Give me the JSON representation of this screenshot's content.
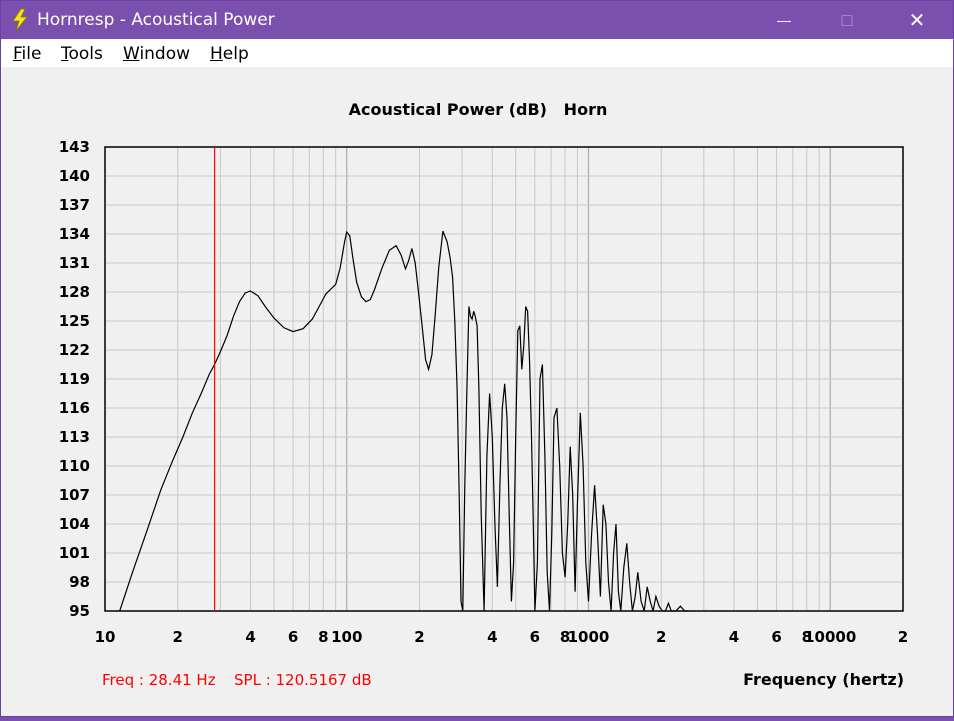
{
  "window": {
    "title": "Hornresp - Acoustical Power",
    "controls": {
      "minimize": "—",
      "maximize": "□",
      "close": "✕"
    }
  },
  "menu": [
    {
      "label": "File",
      "mnemonic": "F",
      "rest": "ile"
    },
    {
      "label": "Tools",
      "mnemonic": "T",
      "rest": "ools"
    },
    {
      "label": "Window",
      "mnemonic": "W",
      "rest": "indow"
    },
    {
      "label": "Help",
      "mnemonic": "H",
      "rest": "elp"
    }
  ],
  "status": {
    "freq": "Freq : 28.41 Hz",
    "spl": "SPL : 120.5167 dB"
  },
  "colors": {
    "titlebar": "#7a4fae",
    "cursor": "#ff0000",
    "status_text": "#ff0000",
    "curve": "#000000",
    "grid": "#c8c8c8"
  },
  "chart_data": {
    "type": "line",
    "title": "Acoustical Power (dB)   Horn",
    "xlabel": "Frequency (hertz)",
    "ylabel": "",
    "x_scale": "log",
    "xlim": [
      10,
      20000
    ],
    "ylim": [
      95,
      143
    ],
    "y_ticks": [
      143,
      140,
      137,
      134,
      131,
      128,
      125,
      122,
      119,
      116,
      113,
      110,
      107,
      104,
      101,
      98,
      95
    ],
    "x_tick_labels": [
      {
        "value": 10,
        "label": "10"
      },
      {
        "value": 20,
        "label": "2"
      },
      {
        "value": 40,
        "label": "4"
      },
      {
        "value": 60,
        "label": "6"
      },
      {
        "value": 80,
        "label": "8"
      },
      {
        "value": 100,
        "label": "100"
      },
      {
        "value": 200,
        "label": "2"
      },
      {
        "value": 400,
        "label": "4"
      },
      {
        "value": 600,
        "label": "6"
      },
      {
        "value": 800,
        "label": "8"
      },
      {
        "value": 1000,
        "label": "1000"
      },
      {
        "value": 2000,
        "label": "2"
      },
      {
        "value": 4000,
        "label": "4"
      },
      {
        "value": 6000,
        "label": "6"
      },
      {
        "value": 8000,
        "label": "8"
      },
      {
        "value": 10000,
        "label": "10000"
      },
      {
        "value": 20000,
        "label": "2"
      }
    ],
    "grid": true,
    "cursor": {
      "x": 28.41,
      "y": 120.5167
    },
    "series": [
      {
        "x": [
          11.5,
          13,
          15,
          17,
          19,
          21,
          23,
          25,
          27,
          28.41,
          30,
          32,
          34,
          36,
          38,
          40,
          43,
          46,
          50,
          55,
          60,
          66,
          72,
          78,
          82,
          86,
          90,
          94,
          98,
          100,
          103,
          106,
          110,
          115,
          120,
          125,
          130,
          140,
          150,
          160,
          168,
          175,
          180,
          186,
          192,
          198,
          205,
          212,
          218,
          225,
          232,
          240,
          250,
          260,
          268,
          274,
          280,
          286,
          292,
          297,
          302,
          308,
          314,
          320,
          325,
          330,
          335,
          340,
          346,
          352,
          360,
          370,
          380,
          390,
          400,
          410,
          420,
          430,
          440,
          450,
          460,
          470,
          480,
          490,
          500,
          510,
          520,
          530,
          540,
          550,
          560,
          570,
          580,
          590,
          600,
          615,
          630,
          645,
          660,
          675,
          690,
          705,
          720,
          740,
          760,
          780,
          800,
          820,
          840,
          860,
          880,
          900,
          925,
          950,
          975,
          1000,
          1030,
          1060,
          1090,
          1120,
          1150,
          1180,
          1210,
          1240,
          1270,
          1300,
          1330,
          1360,
          1400,
          1440,
          1480,
          1520,
          1560,
          1600,
          1650,
          1700,
          1750,
          1800,
          1850,
          1900,
          1960,
          2020,
          2080,
          2140,
          2200,
          2300,
          2400,
          2500,
          2600
        ],
        "values": [
          95,
          99,
          103.5,
          107.5,
          110.5,
          113,
          115.5,
          117.5,
          119.5,
          120.5,
          121.8,
          123.5,
          125.5,
          127,
          127.9,
          128.1,
          127.6,
          126.5,
          125.3,
          124.3,
          123.9,
          124.2,
          125.2,
          126.8,
          127.8,
          128.3,
          128.8,
          130.5,
          133.2,
          134.2,
          133.8,
          131.5,
          129,
          127.5,
          127,
          127.2,
          128.2,
          130.5,
          132.3,
          132.8,
          131.8,
          130.4,
          131.2,
          132.5,
          131,
          128,
          124.5,
          121,
          120,
          121.5,
          125.5,
          130.5,
          134.3,
          133.2,
          131.5,
          129.5,
          125,
          118,
          107,
          96,
          95,
          108,
          118,
          126.5,
          125.5,
          125.2,
          126,
          125.5,
          124.5,
          118,
          105,
          95,
          111,
          117.5,
          113,
          104,
          97.5,
          108,
          116,
          118.5,
          115,
          105,
          96,
          100,
          113,
          124,
          124.5,
          120,
          122.5,
          126.5,
          126,
          121,
          114,
          105,
          95,
          100,
          119,
          120.5,
          111,
          99,
          95,
          103,
          115,
          116,
          110,
          101,
          98.5,
          104,
          112,
          107,
          97,
          106,
          115.5,
          110,
          100,
          96,
          103,
          108,
          103,
          96.5,
          106,
          104,
          98,
          95,
          101,
          104,
          97,
          95,
          99.5,
          102,
          98,
          95,
          96.5,
          99,
          96,
          95,
          97.5,
          96,
          95,
          96.5,
          95.5,
          95,
          95,
          95.8,
          95,
          95,
          95.5,
          95,
          95
        ]
      }
    ]
  }
}
